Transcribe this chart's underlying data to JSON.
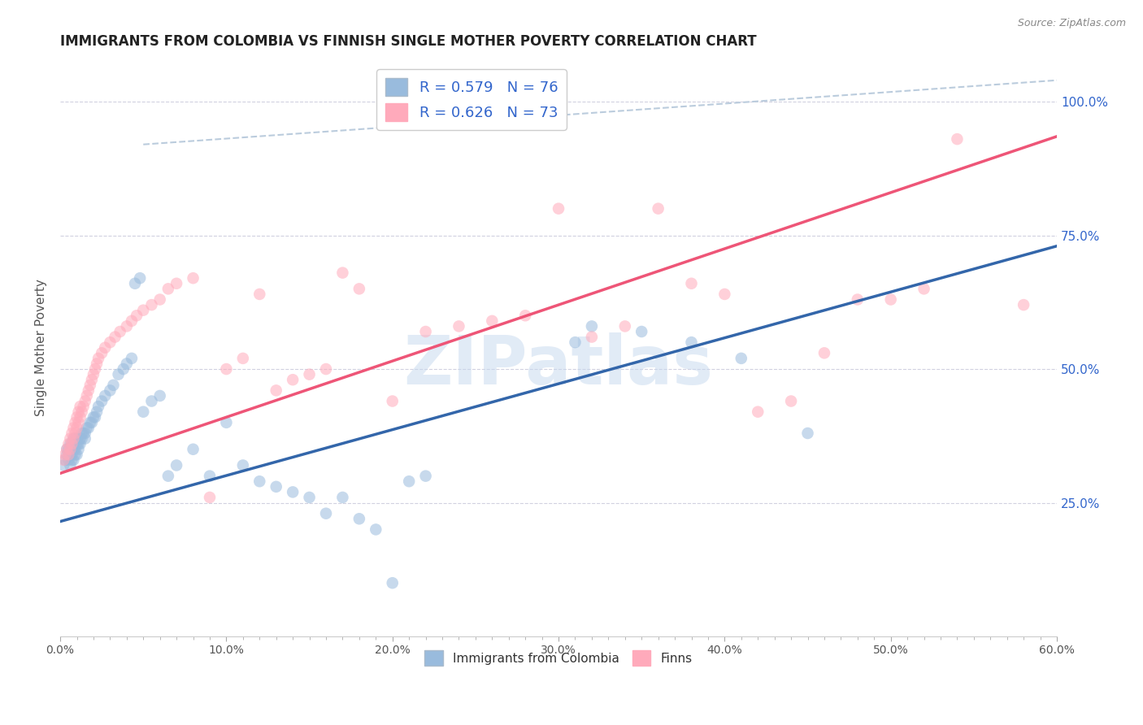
{
  "title": "IMMIGRANTS FROM COLOMBIA VS FINNISH SINGLE MOTHER POVERTY CORRELATION CHART",
  "source": "Source: ZipAtlas.com",
  "ylabel": "Single Mother Poverty",
  "xlim": [
    0.0,
    0.6
  ],
  "ylim": [
    0.0,
    1.08
  ],
  "xtick_labels": [
    "0.0%",
    "",
    "",
    "",
    "",
    "",
    "",
    "",
    "",
    "",
    "10.0%",
    "",
    "",
    "",
    "",
    "",
    "",
    "",
    "",
    "",
    "20.0%",
    "",
    "",
    "",
    "",
    "",
    "",
    "",
    "",
    "",
    "30.0%",
    "",
    "",
    "",
    "",
    "",
    "",
    "",
    "",
    "",
    "40.0%",
    "",
    "",
    "",
    "",
    "",
    "",
    "",
    "",
    "",
    "50.0%",
    "",
    "",
    "",
    "",
    "",
    "",
    "",
    "",
    "",
    "60.0%"
  ],
  "xtick_vals": [
    0.0,
    0.01,
    0.02,
    0.03,
    0.04,
    0.05,
    0.06,
    0.07,
    0.08,
    0.09,
    0.1,
    0.11,
    0.12,
    0.13,
    0.14,
    0.15,
    0.16,
    0.17,
    0.18,
    0.19,
    0.2,
    0.21,
    0.22,
    0.23,
    0.24,
    0.25,
    0.26,
    0.27,
    0.28,
    0.29,
    0.3,
    0.31,
    0.32,
    0.33,
    0.34,
    0.35,
    0.36,
    0.37,
    0.38,
    0.39,
    0.4,
    0.41,
    0.42,
    0.43,
    0.44,
    0.45,
    0.46,
    0.47,
    0.48,
    0.49,
    0.5,
    0.51,
    0.52,
    0.53,
    0.54,
    0.55,
    0.56,
    0.57,
    0.58,
    0.59,
    0.6
  ],
  "xtick_major": [
    0.0,
    0.1,
    0.2,
    0.3,
    0.4,
    0.5,
    0.6
  ],
  "xtick_major_labels": [
    "0.0%",
    "10.0%",
    "20.0%",
    "30.0%",
    "40.0%",
    "50.0%",
    "60.0%"
  ],
  "ytick_vals": [
    0.25,
    0.5,
    0.75,
    1.0
  ],
  "ytick_labels_right": [
    "25.0%",
    "50.0%",
    "75.0%",
    "100.0%"
  ],
  "color_blue": "#99BBDD",
  "color_pink": "#FFAABB",
  "color_blue_line": "#3366AA",
  "color_pink_line": "#EE5577",
  "color_dashed_line": "#BBCCDD",
  "watermark_color": "#C5D8EE",
  "blue_scatter_x": [
    0.002,
    0.003,
    0.004,
    0.004,
    0.005,
    0.005,
    0.005,
    0.006,
    0.006,
    0.006,
    0.007,
    0.007,
    0.007,
    0.008,
    0.008,
    0.008,
    0.008,
    0.009,
    0.009,
    0.009,
    0.01,
    0.01,
    0.01,
    0.011,
    0.011,
    0.012,
    0.012,
    0.013,
    0.013,
    0.014,
    0.015,
    0.015,
    0.016,
    0.017,
    0.018,
    0.019,
    0.02,
    0.021,
    0.022,
    0.023,
    0.025,
    0.027,
    0.03,
    0.032,
    0.035,
    0.038,
    0.04,
    0.043,
    0.045,
    0.048,
    0.05,
    0.055,
    0.06,
    0.065,
    0.07,
    0.08,
    0.09,
    0.1,
    0.11,
    0.12,
    0.13,
    0.14,
    0.15,
    0.16,
    0.17,
    0.18,
    0.19,
    0.2,
    0.21,
    0.22,
    0.31,
    0.32,
    0.35,
    0.38,
    0.41,
    0.45
  ],
  "blue_scatter_y": [
    0.32,
    0.33,
    0.34,
    0.35,
    0.33,
    0.34,
    0.35,
    0.32,
    0.34,
    0.36,
    0.33,
    0.34,
    0.36,
    0.33,
    0.35,
    0.36,
    0.37,
    0.34,
    0.35,
    0.37,
    0.34,
    0.36,
    0.37,
    0.35,
    0.36,
    0.36,
    0.37,
    0.37,
    0.38,
    0.38,
    0.37,
    0.38,
    0.39,
    0.39,
    0.4,
    0.4,
    0.41,
    0.41,
    0.42,
    0.43,
    0.44,
    0.45,
    0.46,
    0.47,
    0.49,
    0.5,
    0.51,
    0.52,
    0.66,
    0.67,
    0.42,
    0.44,
    0.45,
    0.3,
    0.32,
    0.35,
    0.3,
    0.4,
    0.32,
    0.29,
    0.28,
    0.27,
    0.26,
    0.23,
    0.26,
    0.22,
    0.2,
    0.1,
    0.29,
    0.3,
    0.55,
    0.58,
    0.57,
    0.55,
    0.52,
    0.38
  ],
  "pink_scatter_x": [
    0.002,
    0.003,
    0.004,
    0.005,
    0.005,
    0.006,
    0.006,
    0.007,
    0.007,
    0.008,
    0.008,
    0.009,
    0.009,
    0.01,
    0.01,
    0.011,
    0.011,
    0.012,
    0.012,
    0.013,
    0.014,
    0.015,
    0.016,
    0.017,
    0.018,
    0.019,
    0.02,
    0.021,
    0.022,
    0.023,
    0.025,
    0.027,
    0.03,
    0.033,
    0.036,
    0.04,
    0.043,
    0.046,
    0.05,
    0.055,
    0.06,
    0.065,
    0.07,
    0.08,
    0.09,
    0.1,
    0.11,
    0.12,
    0.13,
    0.14,
    0.15,
    0.16,
    0.17,
    0.18,
    0.2,
    0.22,
    0.24,
    0.26,
    0.28,
    0.3,
    0.32,
    0.34,
    0.36,
    0.38,
    0.4,
    0.42,
    0.44,
    0.46,
    0.48,
    0.5,
    0.52,
    0.54,
    0.58
  ],
  "pink_scatter_y": [
    0.33,
    0.34,
    0.35,
    0.34,
    0.36,
    0.35,
    0.37,
    0.36,
    0.38,
    0.37,
    0.39,
    0.38,
    0.4,
    0.39,
    0.41,
    0.4,
    0.42,
    0.41,
    0.43,
    0.42,
    0.43,
    0.44,
    0.45,
    0.46,
    0.47,
    0.48,
    0.49,
    0.5,
    0.51,
    0.52,
    0.53,
    0.54,
    0.55,
    0.56,
    0.57,
    0.58,
    0.59,
    0.6,
    0.61,
    0.62,
    0.63,
    0.65,
    0.66,
    0.67,
    0.26,
    0.5,
    0.52,
    0.64,
    0.46,
    0.48,
    0.49,
    0.5,
    0.68,
    0.65,
    0.44,
    0.57,
    0.58,
    0.59,
    0.6,
    0.8,
    0.56,
    0.58,
    0.8,
    0.66,
    0.64,
    0.42,
    0.44,
    0.53,
    0.63,
    0.63,
    0.65,
    0.93,
    0.62
  ],
  "blue_line_x": [
    0.0,
    0.6
  ],
  "blue_line_y": [
    0.215,
    0.73
  ],
  "pink_line_x": [
    0.0,
    0.6
  ],
  "pink_line_y": [
    0.305,
    0.935
  ],
  "dashed_line_x": [
    0.05,
    0.6
  ],
  "dashed_line_y": [
    0.92,
    1.04
  ],
  "title_fontsize": 12,
  "axis_fontsize": 11,
  "tick_fontsize": 10,
  "legend_r1_vals": "R = 0.579   N = 76",
  "legend_r2_vals": "R = 0.626   N = 73"
}
